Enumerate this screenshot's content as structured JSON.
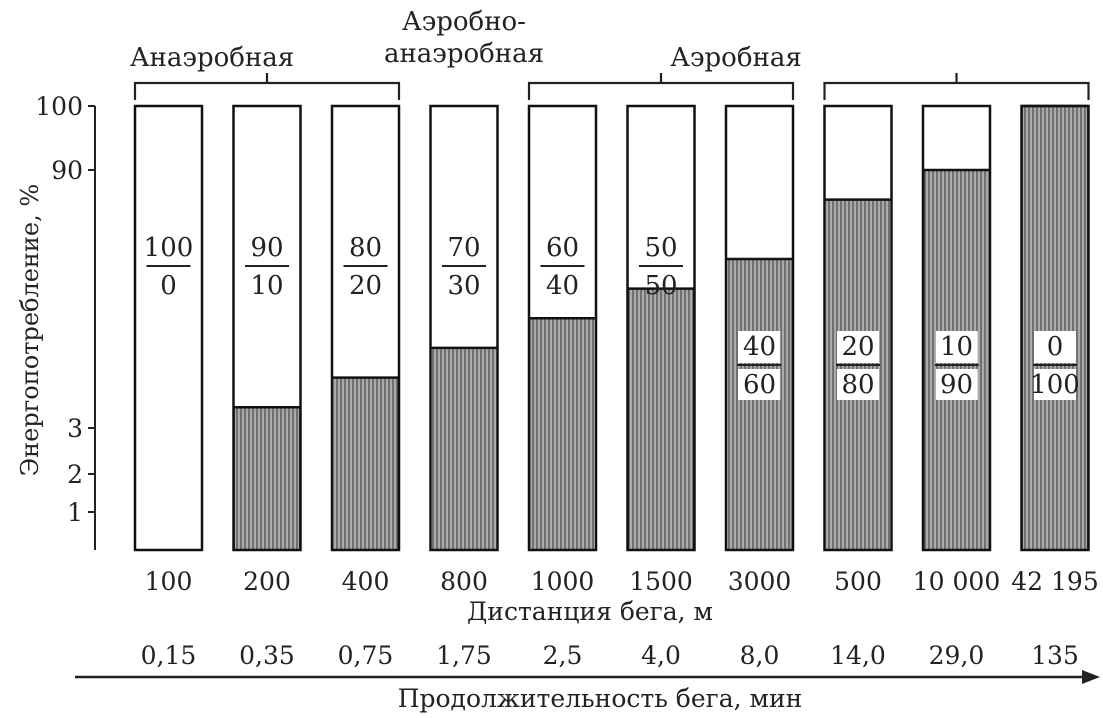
{
  "chart_data": {
    "type": "bar",
    "subtype": "stacked-100-percent",
    "ylabel": "Энергопотребление, %",
    "y_ticks": [
      "1",
      "2",
      "3",
      "90",
      "100"
    ],
    "xlabel": "Дистанция бега, м",
    "duration_label": "Продолжительность бега, мин",
    "categories": [
      "100",
      "200",
      "400",
      "800",
      "1000",
      "1500",
      "3000",
      "500",
      "10 000",
      "42 195"
    ],
    "durations": [
      "0,15",
      "0,35",
      "0,75",
      "1,75",
      "2,5",
      "4,0",
      "8,0",
      "14,0",
      "29,0",
      "135"
    ],
    "series": [
      {
        "values": [
          100,
          90,
          80,
          70,
          60,
          50,
          40,
          20,
          10,
          0
        ],
        "fill": "white"
      },
      {
        "values": [
          0,
          10,
          20,
          30,
          40,
          50,
          60,
          80,
          90,
          100
        ],
        "fill": "hatched"
      }
    ],
    "fraction_labels": [
      {
        "top": "100",
        "bottom": "0"
      },
      {
        "top": "90",
        "bottom": "10"
      },
      {
        "top": "80",
        "bottom": "20"
      },
      {
        "top": "70",
        "bottom": "30"
      },
      {
        "top": "60",
        "bottom": "40"
      },
      {
        "top": "50",
        "bottom": "50"
      },
      {
        "top": "40",
        "bottom": "60"
      },
      {
        "top": "20",
        "bottom": "80"
      },
      {
        "top": "10",
        "bottom": "90"
      },
      {
        "top": "0",
        "bottom": "100"
      }
    ],
    "zones": [
      {
        "label": "Анаэробная",
        "from": 0,
        "to": 2
      },
      {
        "label": "Аэробно-\nанаэробная",
        "from": null,
        "to": null
      },
      {
        "label": "Аэробная",
        "from": 4,
        "to": 6
      },
      {
        "label": "",
        "from": 7,
        "to": 9
      }
    ],
    "ylim": [
      0,
      100
    ],
    "grid": false,
    "legend": "none"
  }
}
